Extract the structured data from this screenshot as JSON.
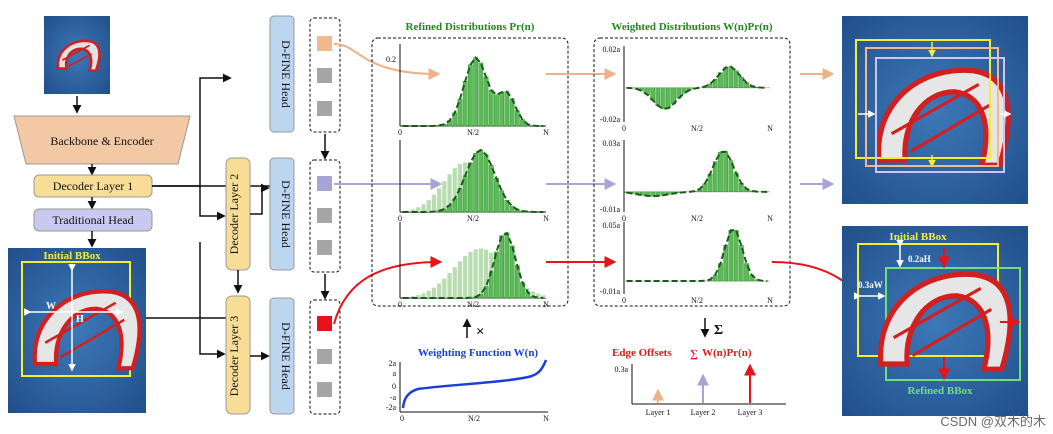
{
  "pipeline": {
    "backbone": "Backbone & Encoder",
    "decoder1": "Decoder Layer 1",
    "traditional_head": "Traditional Head",
    "decoder2": "Decoder Layer 2",
    "decoder3": "Decoder Layer 3",
    "dfine_head": "D-FINE Head"
  },
  "panels": {
    "refined_title": "Refined Distributions Pr(n)",
    "weighted_title": "Weighted Distributions W(n)Pr(n)",
    "weighting_title": "Weighting Function W(n)",
    "edge_offsets_title_prefix": "Edge Offsets ",
    "edge_offsets_title_formula": "W(n)Pr(n)",
    "times_symbol": "×",
    "sum_symbol": "Σ"
  },
  "axes": {
    "refined_ytick": "0.2",
    "refined_ymin": "0",
    "x_start": "0",
    "x_mid": "N/2",
    "x_end": "N",
    "weighted_rows": [
      {
        "top": "0.02a",
        "bottom": "-0.02a"
      },
      {
        "top": "0.03a",
        "bottom": "-0.01a"
      },
      {
        "top": "0.05a",
        "bottom": "-0.01a"
      }
    ],
    "weighting_yticks": [
      "2a",
      "a",
      "0",
      "-a",
      "-2a"
    ],
    "offsets_ytick": "0.3a",
    "layer_labels": [
      "Layer 1",
      "Layer 2",
      "Layer 3"
    ]
  },
  "bbox": {
    "initial_left": "Initial BBox",
    "initial_right": "Initial BBox",
    "refined": "Refined BBox",
    "w_label": "W",
    "h_label": "H",
    "w_offset": "0.3aW",
    "h_offset": "0.2aH"
  },
  "colors": {
    "layer1": "#f3b98e",
    "layer2": "#a9a4d8",
    "layer3": "#e8131a",
    "distribution": "#2f9a2f",
    "weighting": "#1a3fd6",
    "pipeline_orange": "#f3c9a5",
    "pipeline_yellow": "#f7dd95",
    "pipeline_purple": "#c8c8f0",
    "dfine_blue": "#bcd6ef",
    "image_bg": "#2f66a6"
  },
  "watermark": "CSDN @双木的木"
}
